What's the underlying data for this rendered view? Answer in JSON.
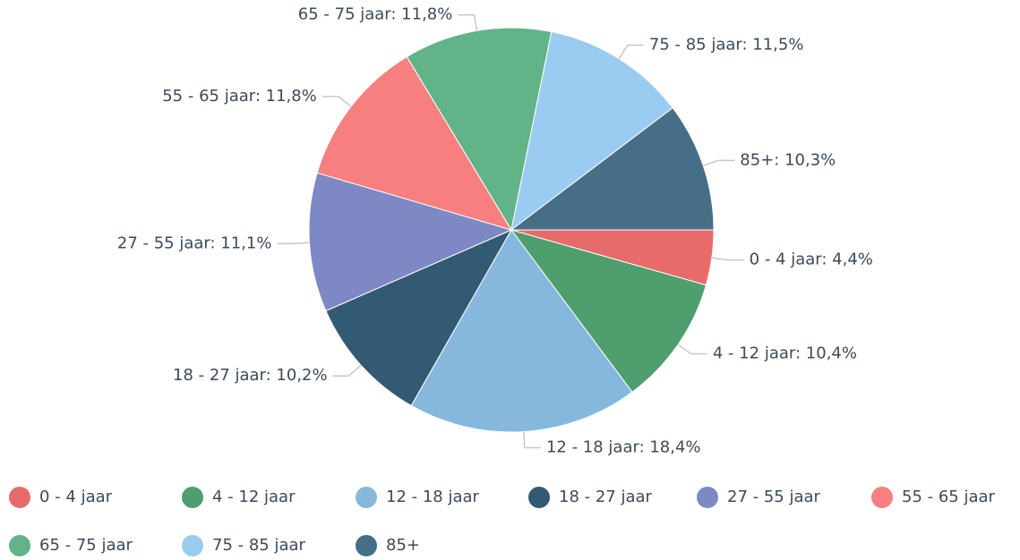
{
  "chart_data": {
    "type": "pie",
    "categories": [
      "0 - 4 jaar",
      "4 - 12 jaar",
      "12 - 18 jaar",
      "18 - 27 jaar",
      "27 - 55 jaar",
      "55 - 65 jaar",
      "65 - 75 jaar",
      "75 - 85 jaar",
      "85+"
    ],
    "values": [
      4.4,
      10.4,
      18.4,
      10.2,
      11.1,
      11.8,
      11.8,
      11.5,
      10.3
    ],
    "value_labels": [
      "0 - 4 jaar: 4,4%",
      "4 - 12 jaar: 10,4%",
      "12 - 18 jaar: 18,4%",
      "18 - 27 jaar: 10,2%",
      "27 - 55 jaar: 11,1%",
      "55 - 65 jaar: 11,8%",
      "65 - 75 jaar: 11,8%",
      "75 - 85 jaar: 11,5%",
      "85+: 10,3%"
    ],
    "colors": [
      "#e76b6b",
      "#4e9e6e",
      "#86b8de",
      "#325a73",
      "#7e88c4",
      "#f77f7f",
      "#62b387",
      "#9acbf0",
      "#476e87"
    ],
    "legend": "bottom"
  }
}
